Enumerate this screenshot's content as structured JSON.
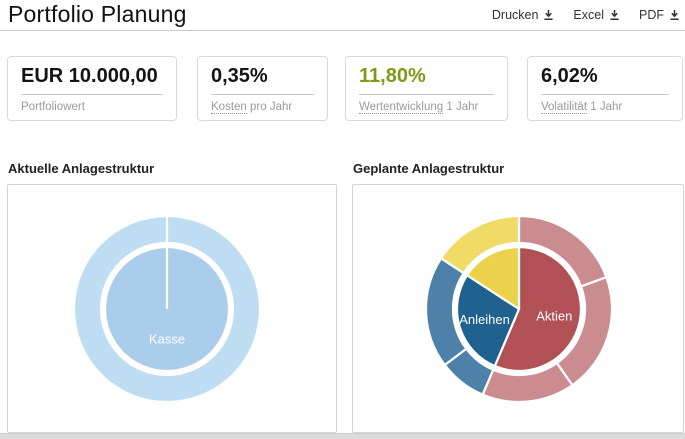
{
  "header": {
    "title": "Portfolio Planung",
    "actions": [
      {
        "label": "Drucken",
        "icon": "download-icon"
      },
      {
        "label": "Excel",
        "icon": "download-icon"
      },
      {
        "label": "PDF",
        "icon": "download-icon"
      }
    ]
  },
  "stats": [
    {
      "value": "EUR 10.000,00",
      "term": "",
      "label": "Portfoliowert"
    },
    {
      "value": "0,35%",
      "term": "Kosten",
      "label": " pro Jahr"
    },
    {
      "value": "11,80%",
      "term": "Wertentwicklung",
      "label": " 1 Jahr",
      "value_style": "color:#7d9b14"
    },
    {
      "value": "6,02%",
      "term": "Volatilität",
      "label": " 1 Jahr"
    }
  ],
  "colors": {
    "positive_green": "#7d9b14",
    "kasse_inner": "#a9cdea",
    "kasse_outer": "#bedcf2",
    "aktien_inner": "#b15156",
    "aktien_outer": "#ca8c8e",
    "anleihen_inner": "#1f618f",
    "anleihen_outer": "#4d81a9",
    "yellow_inner": "#ecd14b",
    "yellow_outer": "#f0db67"
  },
  "chart_data": [
    {
      "type": "pie",
      "style": "sunburst",
      "title": "Aktuelle Anlagestruktur",
      "legend_position": "none",
      "inner": [
        {
          "label": "Kasse",
          "value_pct": 100,
          "start": 0,
          "end": 360,
          "color": "#a9cdea"
        }
      ],
      "outer": [
        {
          "parent": "Kasse",
          "value_pct": 100,
          "start": 0,
          "end": 360,
          "color": "#bedcf2"
        }
      ]
    },
    {
      "type": "pie",
      "style": "sunburst",
      "title": "Geplante Anlagestruktur",
      "legend_position": "none",
      "inner": [
        {
          "label": "Aktien",
          "value_pct": 56,
          "start": 0,
          "end": 203,
          "color": "#b15156"
        },
        {
          "label": "Anleihen",
          "value_pct": 28,
          "start": 203,
          "end": 303,
          "color": "#1f618f"
        },
        {
          "label": "",
          "value_pct": 16,
          "start": 303,
          "end": 360,
          "color": "#ecd14b"
        }
      ],
      "outer": [
        {
          "parent": "Aktien",
          "value_pct": 19,
          "start": 0,
          "end": 70,
          "color": "#ca8c8e"
        },
        {
          "parent": "Aktien",
          "value_pct": 21,
          "start": 70,
          "end": 145,
          "color": "#ca8c8e"
        },
        {
          "parent": "Aktien",
          "value_pct": 16,
          "start": 145,
          "end": 203,
          "color": "#ca8c8e"
        },
        {
          "parent": "Anleihen",
          "value_pct": 8,
          "start": 203,
          "end": 233,
          "color": "#4d81a9"
        },
        {
          "parent": "Anleihen",
          "value_pct": 20,
          "start": 233,
          "end": 303,
          "color": "#4d81a9"
        },
        {
          "parent": "",
          "value_pct": 16,
          "start": 303,
          "end": 360,
          "color": "#f0db67"
        }
      ]
    }
  ]
}
